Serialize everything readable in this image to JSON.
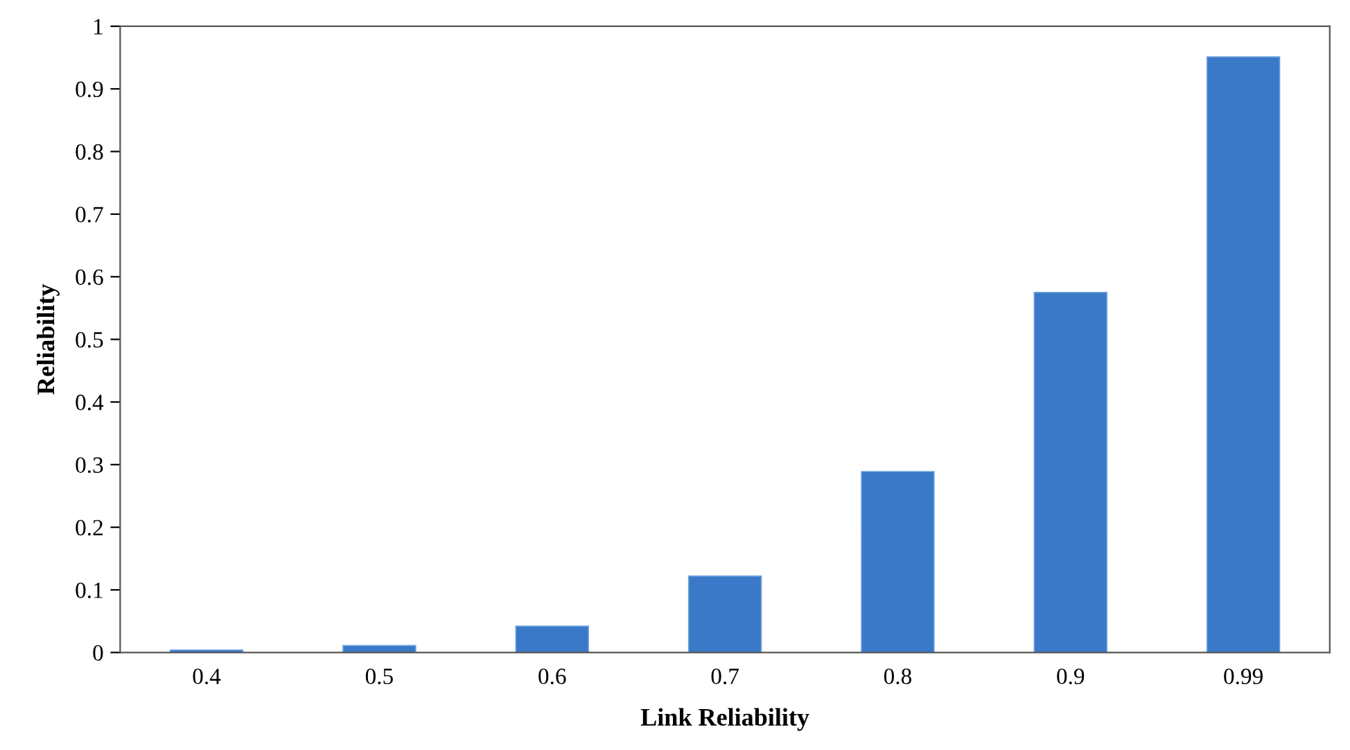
{
  "chart_data": {
    "type": "bar",
    "xlabel": "Link Reliability",
    "ylabel": "Reliability",
    "categories": [
      "0.4",
      "0.5",
      "0.6",
      "0.7",
      "0.8",
      "0.9",
      "0.99"
    ],
    "values": [
      0.004,
      0.011,
      0.042,
      0.122,
      0.289,
      0.575,
      0.951
    ],
    "color": "#3a78c8",
    "ylim": [
      0,
      1
    ],
    "yticks": [
      0,
      0.1,
      0.2,
      0.3,
      0.4,
      0.5,
      0.6,
      0.7,
      0.8,
      0.9,
      1
    ],
    "grid": false,
    "legend": false
  }
}
